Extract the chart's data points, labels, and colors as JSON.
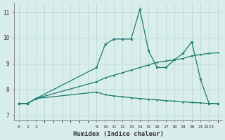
{
  "title": "",
  "xlabel": "Humidex (Indice chaleur)",
  "ylabel": "",
  "bg_color": "#d9eeeb",
  "grid_color": "#b8d8d4",
  "line_color": "#1a7a6e",
  "xtick_positions": [
    0,
    1,
    2,
    9,
    10,
    11,
    12,
    13,
    14,
    15,
    16,
    17,
    18,
    19,
    20,
    21,
    22,
    23
  ],
  "xtick_labels": [
    "0",
    "1",
    "2",
    "",
    "9",
    "10",
    "11",
    "12",
    "13",
    "14",
    "15",
    "16",
    "17",
    "18",
    "19",
    "20",
    "21",
    "2223"
  ],
  "yticks": [
    7,
    8,
    9,
    10,
    11
  ],
  "xlim": [
    -0.5,
    23.5
  ],
  "ylim": [
    6.8,
    11.35
  ],
  "line1_x": [
    0,
    1,
    2,
    9,
    10,
    11,
    12,
    13,
    14,
    15,
    16,
    17,
    18,
    19,
    20,
    21,
    22,
    23
  ],
  "line1_y": [
    7.45,
    7.45,
    7.65,
    8.85,
    9.75,
    9.95,
    9.95,
    9.95,
    11.1,
    9.5,
    8.85,
    8.85,
    9.15,
    9.4,
    9.85,
    8.4,
    7.45,
    7.45
  ],
  "line2_x": [
    0,
    1,
    2,
    9,
    10,
    11,
    12,
    13,
    14,
    15,
    16,
    17,
    18,
    19,
    20,
    21,
    22,
    23
  ],
  "line2_y": [
    7.45,
    7.45,
    7.65,
    8.3,
    8.45,
    8.55,
    8.65,
    8.75,
    8.85,
    8.95,
    9.05,
    9.1,
    9.15,
    9.2,
    9.3,
    9.35,
    9.4,
    9.42
  ],
  "line3_x": [
    0,
    1,
    2,
    9,
    10,
    11,
    12,
    13,
    14,
    15,
    16,
    17,
    18,
    19,
    20,
    21,
    22,
    23
  ],
  "line3_y": [
    7.45,
    7.45,
    7.65,
    7.9,
    7.8,
    7.75,
    7.72,
    7.68,
    7.65,
    7.62,
    7.6,
    7.57,
    7.55,
    7.52,
    7.5,
    7.48,
    7.46,
    7.45
  ]
}
